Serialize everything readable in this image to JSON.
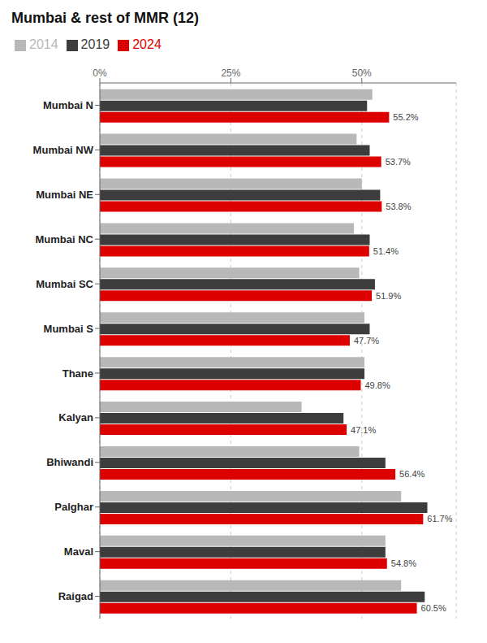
{
  "chart_data": {
    "type": "bar",
    "orientation": "horizontal",
    "title": "Mumbai & rest of MMR (12)",
    "categories": [
      "Mumbai N",
      "Mumbai NW",
      "Mumbai NE",
      "Mumbai NC",
      "Mumbai SC",
      "Mumbai S",
      "Thane",
      "Kalyan",
      "Bhiwandi",
      "Palghar",
      "Maval",
      "Raigad"
    ],
    "series": [
      {
        "name": "2014",
        "color": "#b8b8b8",
        "values": [
          52.0,
          49.0,
          50.0,
          48.5,
          49.5,
          50.5,
          50.5,
          38.5,
          49.5,
          57.5,
          54.5,
          57.5
        ]
      },
      {
        "name": "2019",
        "color": "#3d3d3d",
        "values": [
          51.0,
          51.5,
          53.5,
          51.5,
          52.5,
          51.5,
          50.5,
          46.5,
          54.5,
          62.5,
          54.5,
          62.0
        ]
      },
      {
        "name": "2024",
        "color": "#dd0000",
        "values": [
          55.2,
          53.7,
          53.8,
          51.4,
          51.9,
          47.7,
          49.8,
          47.1,
          56.4,
          61.7,
          54.8,
          60.5
        ],
        "data_labels": true,
        "value_labels": [
          "55.2%",
          "53.7%",
          "53.8%",
          "51.4%",
          "51.9%",
          "47.7%",
          "49.8%",
          "47.1%",
          "56.4%",
          "61.7%",
          "54.8%",
          "60.5%"
        ]
      }
    ],
    "xlim": [
      0,
      68
    ],
    "xticks": [
      {
        "value": 0,
        "label": "0%"
      },
      {
        "value": 25,
        "label": "25%"
      },
      {
        "value": 50,
        "label": "50%"
      }
    ],
    "grid": true,
    "legend": "top left"
  }
}
